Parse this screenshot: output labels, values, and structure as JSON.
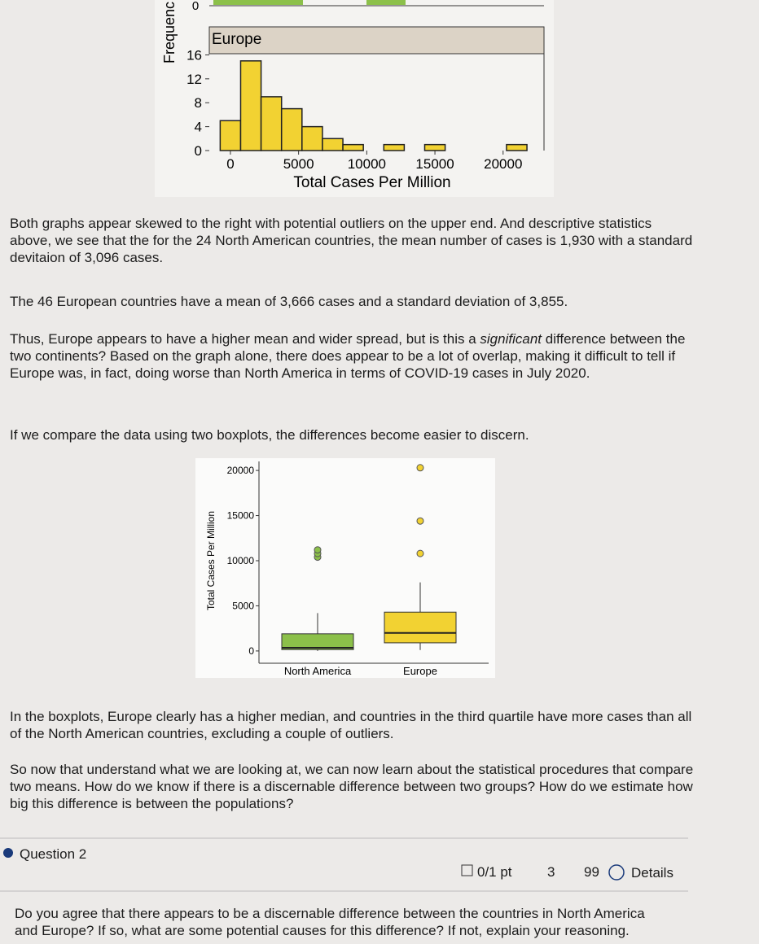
{
  "top_fragment": {
    "tick": "0",
    "y_label": "Frequenc"
  },
  "histogram": {
    "type": "histogram",
    "title": "Europe",
    "x_label": "Total Cases Per Million",
    "bins": [
      -750,
      750,
      2250,
      3750,
      5250,
      6750,
      8250,
      9750,
      11250,
      12750,
      14250,
      15750,
      17250,
      18750,
      20250,
      21750
    ],
    "counts": [
      5,
      15,
      9,
      7,
      4,
      2,
      1,
      0,
      1,
      0,
      1,
      0,
      0,
      0,
      1
    ],
    "color": "#f2d232",
    "xlim": [
      -1250,
      23000
    ],
    "ylim": [
      0,
      16.2
    ],
    "xticks": [
      0,
      5000,
      10000,
      15000,
      20000
    ],
    "yticks": [
      0,
      4,
      8,
      12,
      16
    ]
  },
  "paragraphs": [
    "Both graphs appear skewed to the right with potential outliers on the upper end. And descriptive statistics above, we see that the for the 24 North American countries, the mean number of cases is 1,930 with a standard devitaion of 3,096 cases.",
    "The 46 European countries have a mean of 3,666 cases and a standard deviation of 3,855.",
    [
      "Thus, Europe appears to have a higher mean and wider spread, but is this a ",
      "significant",
      " difference between the two continents? Based on the graph alone, there does appear to be a lot of overlap, making it difficult to tell if Europe was, in fact, doing worse than North America in terms of COVID-19 cases in July 2020."
    ],
    "If we compare the data using two boxplots, the differences become easier to discern."
  ],
  "boxplot": {
    "type": "boxplot",
    "y_label": "Total Cases Per Million",
    "ylim": [
      -1000,
      21000
    ],
    "yticks": [
      0,
      5000,
      10000,
      15000,
      20000
    ],
    "series": [
      {
        "name": "North America",
        "color": "#8cc04a",
        "min": 0,
        "q1": 150,
        "median": 350,
        "q3": 1900,
        "max": 4200,
        "outliers": [
          10400,
          10800,
          11200
        ]
      },
      {
        "name": "Europe",
        "color": "#f2d232",
        "min": 100,
        "q1": 900,
        "median": 2000,
        "q3": 4300,
        "max": 7600,
        "outliers": [
          10800,
          14400,
          20300
        ]
      }
    ]
  },
  "paragraphs_after": [
    "In the boxplots, Europe clearly has a higher median, and countries in the third quartile have more cases than all of the North American countries, excluding a couple of outliers.",
    "So now that understand what we are looking at, we can now learn about the statistical procedures that compare two means. How do we know if there is a discernable difference between two groups? How do we estimate how big this difference is between the populations?"
  ],
  "question": {
    "title": "Question 2",
    "points": "0/1 pt",
    "retries": "3",
    "attempts": "99",
    "details": "Details",
    "text": "Do you agree that there appears to be a discernable difference between the countries in North America and Europe? If so, what are some potential causes for this difference? If not, explain your reasoning."
  }
}
